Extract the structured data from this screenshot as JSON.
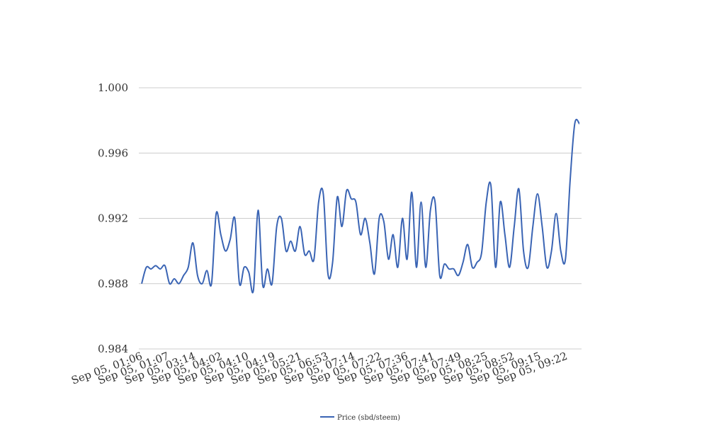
{
  "chart_data": {
    "type": "line",
    "title": "",
    "xlabel": "",
    "ylabel": "",
    "ylim": [
      0.984,
      1.0
    ],
    "yticks": [
      "0.984",
      "0.988",
      "0.992",
      "0.996",
      "1.000"
    ],
    "x_tick_labels": [
      "Sep 05, 01:06",
      "Sep 05, 01:07",
      "Sep 05, 03:14",
      "Sep 05, 04:02",
      "Sep 05, 04:10",
      "Sep 05, 04:19",
      "Sep 05, 05:21",
      "Sep 05, 06:53",
      "Sep 05, 07:14",
      "Sep 05, 07:22",
      "Sep 05, 07:36",
      "Sep 05, 07:41",
      "Sep 05, 07:49",
      "Sep 05, 08:25",
      "Sep 05, 08:52",
      "Sep 05, 09:15",
      "Sep 05, 09:22"
    ],
    "grid": true,
    "legend_position": "bottom",
    "series": [
      {
        "name": "Price (sbd/steem)",
        "color": "#3a64b4",
        "values": [
          0.988,
          0.989,
          0.9889,
          0.9891,
          0.9889,
          0.9891,
          0.988,
          0.9883,
          0.988,
          0.9885,
          0.989,
          0.9905,
          0.9885,
          0.988,
          0.9888,
          0.988,
          0.9923,
          0.991,
          0.99,
          0.9907,
          0.992,
          0.988,
          0.989,
          0.9887,
          0.9876,
          0.9925,
          0.9879,
          0.9889,
          0.988,
          0.9915,
          0.992,
          0.99,
          0.9906,
          0.99,
          0.9915,
          0.9898,
          0.99,
          0.9895,
          0.993,
          0.9935,
          0.9886,
          0.9893,
          0.9933,
          0.9915,
          0.9937,
          0.9932,
          0.993,
          0.991,
          0.992,
          0.9905,
          0.9886,
          0.992,
          0.9918,
          0.9895,
          0.991,
          0.989,
          0.992,
          0.9895,
          0.9936,
          0.989,
          0.993,
          0.989,
          0.9925,
          0.993,
          0.9885,
          0.9892,
          0.9889,
          0.9889,
          0.9885,
          0.9893,
          0.9904,
          0.989,
          0.9893,
          0.9899,
          0.993,
          0.994,
          0.989,
          0.993,
          0.991,
          0.989,
          0.9915,
          0.9938,
          0.99,
          0.989,
          0.9915,
          0.9935,
          0.9915,
          0.989,
          0.99,
          0.9923,
          0.99,
          0.9895,
          0.9943,
          0.9978,
          0.9978
        ]
      }
    ]
  }
}
